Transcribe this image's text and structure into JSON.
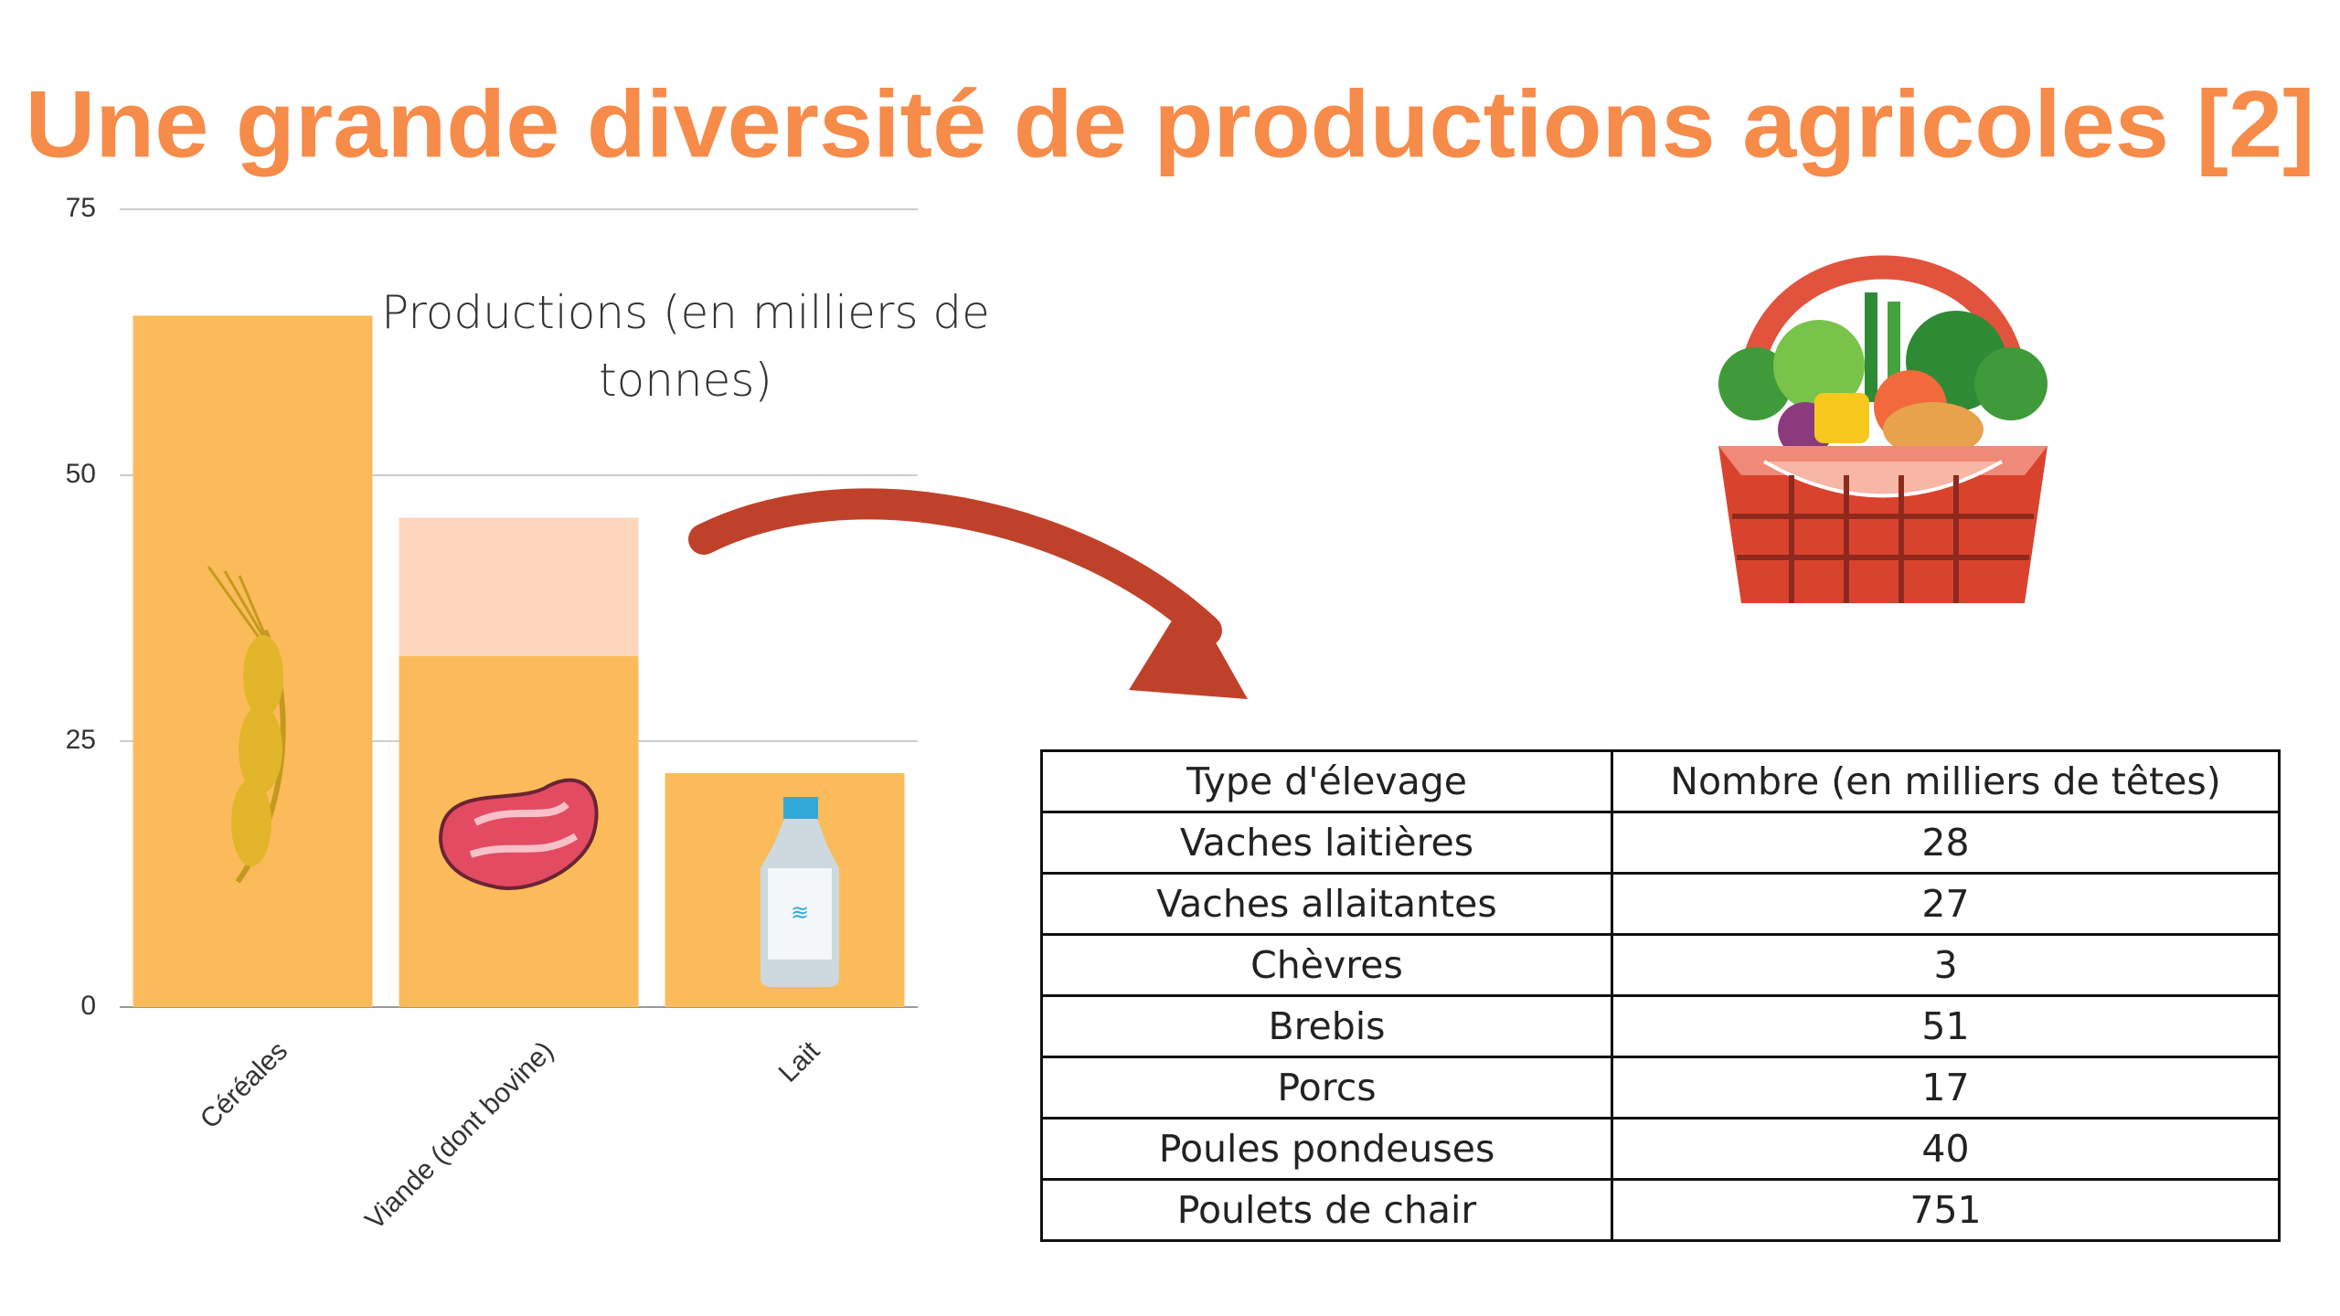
{
  "title": "Une grande diversité de productions agricoles [2]",
  "chart_data": {
    "type": "bar",
    "stacked": true,
    "title": "Productions (en milliers de tonnes)",
    "categories": [
      "Céréales",
      "Viande (dont bovine)",
      "Lait"
    ],
    "series": [
      {
        "color": "#fbbb5a",
        "values": [
          65,
          33,
          22
        ]
      },
      {
        "color": "#fdd5bd",
        "values": [
          null,
          13,
          null
        ]
      }
    ],
    "ylim": [
      0,
      75
    ],
    "yticks": [
      0,
      25,
      50,
      75
    ],
    "grid": true
  },
  "table": {
    "header": [
      "Type d'élevage",
      "Nombre (en milliers de têtes)"
    ],
    "rows": [
      [
        "Vaches laitières",
        28
      ],
      [
        "Vaches allaitantes",
        27
      ],
      [
        "Chèvres",
        3
      ],
      [
        "Brebis",
        51
      ],
      [
        "Porcs",
        17
      ],
      [
        "Poules pondeuses",
        40
      ],
      [
        "Poulets de chair",
        751
      ]
    ]
  }
}
